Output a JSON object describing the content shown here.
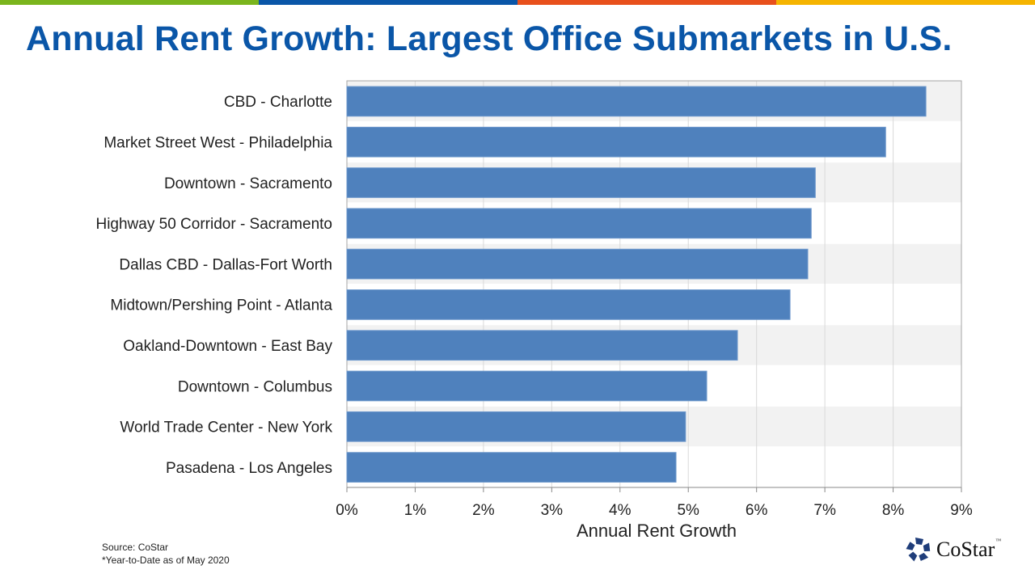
{
  "title": "Annual Rent Growth: Largest Office Submarkets in U.S.",
  "top_bar_colors": [
    "#7ab51d",
    "#0a56a8",
    "#e8501c",
    "#f5b400"
  ],
  "source": "Source: CoStar",
  "footnote": "*Year-to-Date  as of May 2020",
  "logo": {
    "text": "CoStar",
    "tm": "™",
    "color": "#1f3d7a"
  },
  "chart_data": {
    "type": "bar",
    "orientation": "horizontal",
    "categories": [
      "CBD - Charlotte",
      "Market Street West - Philadelphia",
      "Downtown - Sacramento",
      "Highway 50 Corridor - Sacramento",
      "Dallas CBD - Dallas-Fort Worth",
      "Midtown/Pershing Point - Atlanta",
      "Oakland-Downtown - East Bay",
      "Downtown - Columbus",
      "World Trade Center - New York",
      "Pasadena - Los Angeles"
    ],
    "values": [
      8.48,
      7.89,
      6.86,
      6.8,
      6.75,
      6.49,
      5.72,
      5.27,
      4.96,
      4.82
    ],
    "xlabel": "Annual Rent Growth",
    "ylabel": "",
    "xlim": [
      0,
      9
    ],
    "xticks": [
      "0%",
      "1%",
      "2%",
      "3%",
      "4%",
      "5%",
      "6%",
      "7%",
      "8%",
      "9%"
    ],
    "grid": true,
    "bar_color": "#4f81bd",
    "band_color": "#f2f2f2"
  }
}
